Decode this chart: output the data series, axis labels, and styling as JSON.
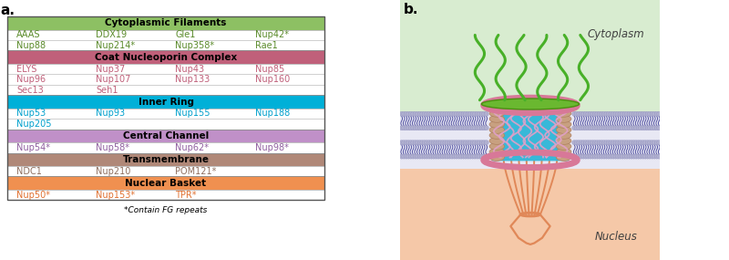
{
  "panel_a_label": "a.",
  "panel_b_label": "b.",
  "footnote": "*Contain FG repeats",
  "sections": [
    {
      "title": "Cytoplasmic Filaments",
      "header_color": "#8dc063",
      "text_color": "#5a8a2a",
      "items": [
        [
          "AAAS",
          "DDX19",
          "Gle1",
          "Nup42*"
        ],
        [
          "Nup88",
          "Nup214*",
          "Nup358*",
          "Rae1"
        ]
      ]
    },
    {
      "title": "Coat Nucleoporin Complex",
      "header_color": "#c0607a",
      "text_color": "#c0607a",
      "items": [
        [
          "ELYS",
          "Nup37",
          "Nup43",
          "Nup85"
        ],
        [
          "Nup96",
          "Nup107",
          "Nup133",
          "Nup160"
        ],
        [
          "Sec13",
          "Seh1",
          "",
          ""
        ]
      ]
    },
    {
      "title": "Inner Ring",
      "header_color": "#00b0d8",
      "text_color": "#00a0cc",
      "items": [
        [
          "Nup53",
          "Nup93",
          "Nup155",
          "Nup188"
        ],
        [
          "Nup205",
          "",
          "",
          ""
        ]
      ]
    },
    {
      "title": "Central Channel",
      "header_color": "#c090c8",
      "text_color": "#9060a0",
      "items": [
        [
          "Nup54*",
          "Nup58*",
          "Nup62*",
          "Nup98*"
        ]
      ]
    },
    {
      "title": "Transmembrane",
      "header_color": "#b08878",
      "text_color": "#907060",
      "items": [
        [
          "NDC1",
          "Nup210",
          "POM121*",
          ""
        ]
      ]
    },
    {
      "title": "Nuclear Basket",
      "header_color": "#f09050",
      "text_color": "#e07030",
      "items": [
        [
          "Nup50*",
          "Nup153*",
          "TPR*",
          ""
        ]
      ]
    }
  ],
  "cyto_color": "#d8ecd0",
  "nuc_color": "#f5c8a8",
  "env_color": "#e8e8f4",
  "head_color": "#b0b0d0",
  "tail_color": "#5050a0",
  "green_ring_color": "#6ab830",
  "pink_ring_color": "#d87898",
  "blue_fill_color": "#38b8d8",
  "coil_color": "#c8a080",
  "fg_nup_color": "#e0a0c8",
  "basket_color": "#e08858",
  "filament_color": "#48b028"
}
